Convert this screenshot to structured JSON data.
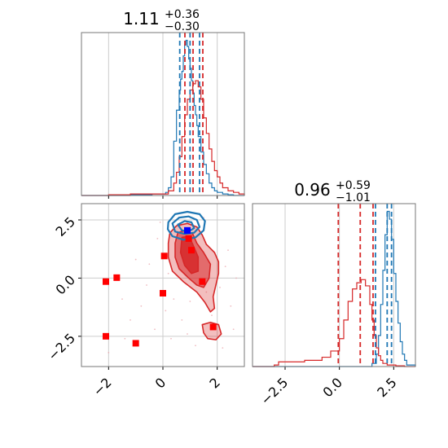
{
  "chart_data": {
    "type": "corner",
    "colors": {
      "red": "#d62728",
      "blue": "#1f77b4",
      "marker_red": "#ff0000",
      "marker_blue": "#0000ff"
    },
    "panels": [
      {
        "id": "hist-param-1",
        "type": "histogram",
        "title": {
          "value": "1.11",
          "sup": "+0.36",
          "sub": "−0.30"
        },
        "xlim": [
          -3.0,
          3.0
        ],
        "grid": true,
        "series": [
          {
            "color": "#1f77b4",
            "x": [
              -3.0,
              -1.6,
              -1.2,
              -0.8,
              -0.4,
              0.1,
              0.2,
              0.3,
              0.4,
              0.5,
              0.6,
              0.65,
              0.7,
              0.75,
              0.8,
              0.85,
              0.9,
              0.95,
              1.0,
              1.05,
              1.1,
              1.15,
              1.2,
              1.25,
              1.3,
              1.4,
              1.5,
              1.6,
              1.7,
              1.8,
              1.9,
              2.0,
              2.2,
              2.4,
              2.6,
              3.0
            ],
            "y": [
              0,
              0,
              0.005,
              0.005,
              0.01,
              0.02,
              0.05,
              0.12,
              0.35,
              0.55,
              0.68,
              0.75,
              0.8,
              0.9,
              0.97,
              1.0,
              0.96,
              0.88,
              0.82,
              0.74,
              0.66,
              0.58,
              0.52,
              0.45,
              0.38,
              0.28,
              0.2,
              0.14,
              0.08,
              0.05,
              0.03,
              0.02,
              0.01,
              0.005,
              0,
              0
            ]
          },
          {
            "color": "#d62728",
            "x": [
              -3.0,
              -2.0,
              -1.6,
              -1.2,
              -0.8,
              -0.4,
              -0.2,
              0.0,
              0.2,
              0.4,
              0.5,
              0.6,
              0.7,
              0.8,
              0.9,
              1.0,
              1.1,
              1.2,
              1.3,
              1.4,
              1.5,
              1.6,
              1.7,
              1.8,
              1.9,
              2.0,
              2.1,
              2.2,
              2.4,
              2.6,
              2.8,
              3.0
            ],
            "y": [
              0,
              0.005,
              0.005,
              0.01,
              0.01,
              0.01,
              0.01,
              0.01,
              0.03,
              0.08,
              0.15,
              0.25,
              0.38,
              0.52,
              0.62,
              0.68,
              0.72,
              0.74,
              0.7,
              0.62,
              0.5,
              0.4,
              0.3,
              0.22,
              0.16,
              0.12,
              0.08,
              0.05,
              0.03,
              0.02,
              0.01,
              0
            ]
          }
        ],
        "vlines": [
          {
            "x": 0.62,
            "color": "#1f77b4"
          },
          {
            "x": 1.0,
            "color": "#1f77b4"
          },
          {
            "x": 1.35,
            "color": "#1f77b4"
          },
          {
            "x": 0.81,
            "color": "#d62728"
          },
          {
            "x": 1.11,
            "color": "#d62728"
          },
          {
            "x": 1.47,
            "color": "#d62728"
          }
        ]
      },
      {
        "id": "hist-param-2",
        "type": "histogram",
        "title": {
          "value": "0.96",
          "sup": "+0.59",
          "sub": "−1.01"
        },
        "xlim": [
          -4.0,
          3.5
        ],
        "xticks": [
          -2.5,
          0.0,
          2.5
        ],
        "xtick_labels": [
          "−2.5",
          "0.0",
          "2.5"
        ],
        "grid": true,
        "series": [
          {
            "color": "#1f77b4",
            "x": [
              -4.0,
              1.2,
              1.5,
              1.7,
              1.8,
              1.9,
              2.0,
              2.1,
              2.2,
              2.3,
              2.4,
              2.5,
              2.6,
              2.7,
              2.8,
              2.9,
              3.0,
              3.1,
              3.5
            ],
            "y": [
              0,
              0,
              0.02,
              0.08,
              0.2,
              0.4,
              0.62,
              0.85,
              1.0,
              0.95,
              0.82,
              0.6,
              0.42,
              0.28,
              0.16,
              0.08,
              0.04,
              0.01,
              0
            ]
          },
          {
            "color": "#d62728",
            "x": [
              -4.0,
              -3.0,
              -2.8,
              -2.4,
              -2.0,
              -1.6,
              -1.2,
              -0.8,
              -0.4,
              0.0,
              0.2,
              0.4,
              0.6,
              0.8,
              1.0,
              1.2,
              1.4,
              1.5,
              1.6,
              1.7,
              1.8,
              1.9,
              2.0,
              2.2,
              2.4,
              2.6,
              3.0,
              3.5
            ],
            "y": [
              0,
              0.01,
              0.03,
              0.03,
              0.03,
              0.04,
              0.04,
              0.06,
              0.1,
              0.18,
              0.3,
              0.42,
              0.5,
              0.54,
              0.56,
              0.52,
              0.4,
              0.3,
              0.2,
              0.12,
              0.07,
              0.04,
              0.02,
              0.01,
              0.01,
              0.005,
              0,
              0
            ]
          }
        ],
        "vlines": [
          {
            "x": 1.66,
            "color": "#1f77b4"
          },
          {
            "x": 2.2,
            "color": "#1f77b4"
          },
          {
            "x": 2.4,
            "color": "#1f77b4"
          },
          {
            "x": -0.05,
            "color": "#d62728"
          },
          {
            "x": 0.96,
            "color": "#d62728"
          },
          {
            "x": 1.55,
            "color": "#d62728"
          }
        ]
      },
      {
        "id": "scatter-2d",
        "type": "contour_scatter",
        "xlim": [
          -3.0,
          3.0
        ],
        "ylim": [
          -3.8,
          3.2
        ],
        "xticks": [
          -2,
          0,
          2
        ],
        "xtick_labels": [
          "−2",
          "0",
          "2"
        ],
        "yticks": [
          -2.5,
          0.0,
          2.5
        ],
        "ytick_labels": [
          "−2.5",
          "0.0",
          "2.5"
        ],
        "grid": true,
        "contours": [
          {
            "level": "outer",
            "color": "#d62728",
            "fill_opacity": 0.3,
            "points": [
              [
                0.3,
                2.0
              ],
              [
                0.5,
                2.25
              ],
              [
                0.9,
                2.35
              ],
              [
                1.25,
                2.2
              ],
              [
                1.45,
                1.85
              ],
              [
                1.6,
                1.45
              ],
              [
                1.9,
                1.1
              ],
              [
                2.05,
                0.7
              ],
              [
                2.05,
                0.2
              ],
              [
                1.95,
                -0.3
              ],
              [
                1.85,
                -0.8
              ],
              [
                1.9,
                -1.3
              ],
              [
                1.75,
                -1.45
              ],
              [
                1.55,
                -1.05
              ],
              [
                1.25,
                -0.6
              ],
              [
                0.75,
                -0.15
              ],
              [
                0.35,
                0.3
              ],
              [
                0.2,
                0.9
              ],
              [
                0.2,
                1.5
              ],
              [
                0.25,
                1.9
              ]
            ]
          },
          {
            "level": "inner",
            "color": "#d62728",
            "fill_opacity": 0.55,
            "points": [
              [
                0.55,
                1.95
              ],
              [
                0.8,
                2.05
              ],
              [
                1.1,
                1.9
              ],
              [
                1.25,
                1.5
              ],
              [
                1.5,
                1.1
              ],
              [
                1.75,
                0.6
              ],
              [
                1.7,
                0.0
              ],
              [
                1.5,
                -0.4
              ],
              [
                1.25,
                -0.3
              ],
              [
                0.95,
                0.0
              ],
              [
                0.6,
                0.4
              ],
              [
                0.45,
                0.9
              ],
              [
                0.45,
                1.5
              ]
            ]
          },
          {
            "level": "core",
            "color": "#d62728",
            "fill_opacity": 0.85,
            "points": [
              [
                0.7,
                1.75
              ],
              [
                0.95,
                1.8
              ],
              [
                1.1,
                1.45
              ],
              [
                1.3,
                0.9
              ],
              [
                1.3,
                0.3
              ],
              [
                1.05,
                0.2
              ],
              [
                0.8,
                0.55
              ],
              [
                0.65,
                1.1
              ]
            ]
          },
          {
            "level": "island",
            "color": "#d62728",
            "fill_opacity": 0.3,
            "points": [
              [
                1.45,
                -2.0
              ],
              [
                1.75,
                -1.9
              ],
              [
                2.05,
                -2.0
              ],
              [
                2.15,
                -2.4
              ],
              [
                1.95,
                -2.65
              ],
              [
                1.65,
                -2.6
              ],
              [
                1.5,
                -2.35
              ]
            ]
          },
          {
            "level": "blue-outer",
            "color": "#1f77b4",
            "fill_opacity": 0,
            "points": [
              [
                0.2,
                2.4
              ],
              [
                0.45,
                2.75
              ],
              [
                0.9,
                2.85
              ],
              [
                1.35,
                2.75
              ],
              [
                1.55,
                2.45
              ],
              [
                1.5,
                2.05
              ],
              [
                1.2,
                1.75
              ],
              [
                0.75,
                1.65
              ],
              [
                0.35,
                1.8
              ],
              [
                0.18,
                2.1
              ]
            ]
          },
          {
            "level": "blue-mid",
            "color": "#1f77b4",
            "fill_opacity": 0,
            "points": [
              [
                0.35,
                2.35
              ],
              [
                0.6,
                2.6
              ],
              [
                0.95,
                2.65
              ],
              [
                1.25,
                2.5
              ],
              [
                1.35,
                2.2
              ],
              [
                1.15,
                1.95
              ],
              [
                0.8,
                1.9
              ],
              [
                0.45,
                2.0
              ]
            ]
          },
          {
            "level": "blue-inner",
            "color": "#1f77b4",
            "fill_opacity": 0,
            "points": [
              [
                0.55,
                2.3
              ],
              [
                0.8,
                2.45
              ],
              [
                1.05,
                2.4
              ],
              [
                1.15,
                2.15
              ],
              [
                0.95,
                2.0
              ],
              [
                0.7,
                2.05
              ]
            ]
          }
        ],
        "markers": [
          {
            "x": -2.1,
            "y": -0.15,
            "color": "#ff0000"
          },
          {
            "x": -1.7,
            "y": 0.02,
            "color": "#ff0000"
          },
          {
            "x": -2.1,
            "y": -2.5,
            "color": "#ff0000"
          },
          {
            "x": -1.0,
            "y": -2.8,
            "color": "#ff0000"
          },
          {
            "x": 0.0,
            "y": -0.65,
            "color": "#ff0000"
          },
          {
            "x": 0.05,
            "y": 0.95,
            "color": "#ff0000"
          },
          {
            "x": 1.05,
            "y": 1.2,
            "color": "#ff0000"
          },
          {
            "x": 0.95,
            "y": 1.7,
            "color": "#ff0000"
          },
          {
            "x": 1.45,
            "y": -0.15,
            "color": "#ff0000"
          },
          {
            "x": 1.85,
            "y": -2.1,
            "color": "#ff0000"
          },
          {
            "x": 0.9,
            "y": 2.05,
            "color": "#0000ff"
          }
        ],
        "scatter": [
          [
            -2.0,
            -3.2
          ],
          [
            -1.5,
            -0.9
          ],
          [
            -1.2,
            -1.8
          ],
          [
            -0.8,
            -1.2
          ],
          [
            -0.5,
            0.6
          ],
          [
            -0.3,
            -2.2
          ],
          [
            -0.2,
            1.7
          ],
          [
            0.1,
            -1.4
          ],
          [
            0.3,
            -2.6
          ],
          [
            0.4,
            -0.9
          ],
          [
            0.6,
            2.8
          ],
          [
            0.7,
            -1.8
          ],
          [
            1.0,
            -1.0
          ],
          [
            1.2,
            -2.9
          ],
          [
            1.6,
            -0.6
          ],
          [
            1.8,
            -1.6
          ],
          [
            2.1,
            -0.4
          ],
          [
            2.3,
            0.5
          ],
          [
            2.4,
            1.2
          ],
          [
            2.5,
            -1.2
          ],
          [
            2.6,
            -2.2
          ],
          [
            2.2,
            -3.0
          ],
          [
            1.5,
            2.6
          ],
          [
            -0.1,
            2.4
          ],
          [
            0.2,
            0.2
          ],
          [
            -0.6,
            -0.3
          ],
          [
            -1.0,
            0.8
          ],
          [
            2.7,
            0.0
          ],
          [
            0.9,
            -2.4
          ],
          [
            -1.4,
            -2.6
          ]
        ]
      }
    ]
  }
}
